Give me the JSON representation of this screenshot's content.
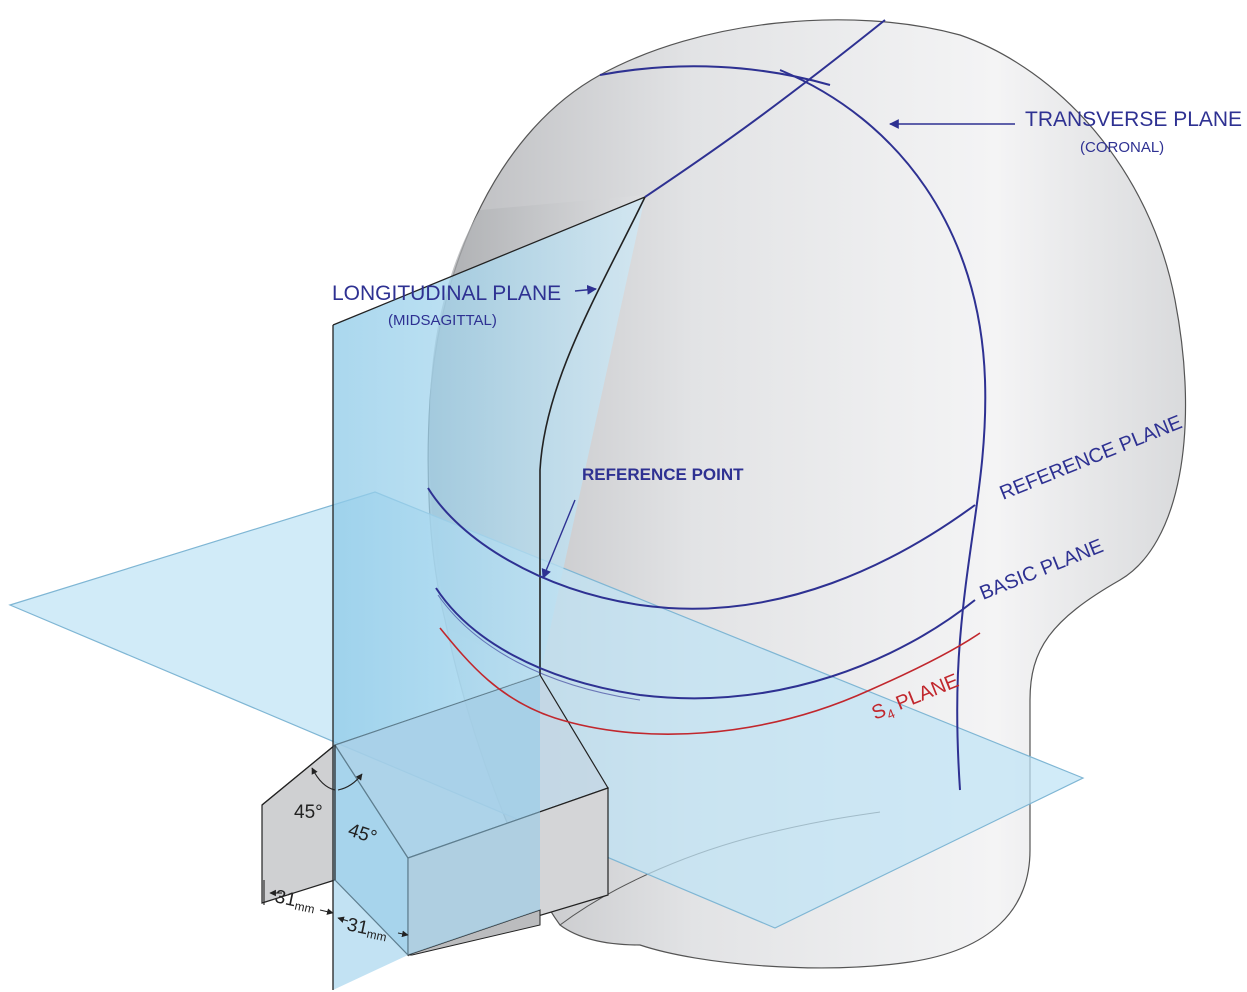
{
  "diagram": {
    "labels": {
      "transverse_plane": "TRANSVERSE PLANE",
      "transverse_sub": "(CORONAL)",
      "longitudinal_plane": "LONGITUDINAL PLANE",
      "longitudinal_sub": "(MIDSAGITTAL)",
      "reference_point": "REFERENCE POINT",
      "reference_plane": "REFERENCE PLANE",
      "basic_plane": "BASIC PLANE",
      "s4_main": "S",
      "s4_sub": "4",
      "s4_rest": " PLANE"
    },
    "angles": {
      "angle_left": "45°",
      "angle_right": "45°"
    },
    "dimensions": {
      "dim1_value": "31",
      "dim1_unit": "mm",
      "dim2_value": "31",
      "dim2_unit": "mm"
    },
    "colors": {
      "navy": "#2e3192",
      "plane_blue": "#bfe3f5",
      "plane_stroke": "#7fb6d4",
      "red": "#c1272d",
      "head_gray": "#e6e7e8"
    }
  }
}
